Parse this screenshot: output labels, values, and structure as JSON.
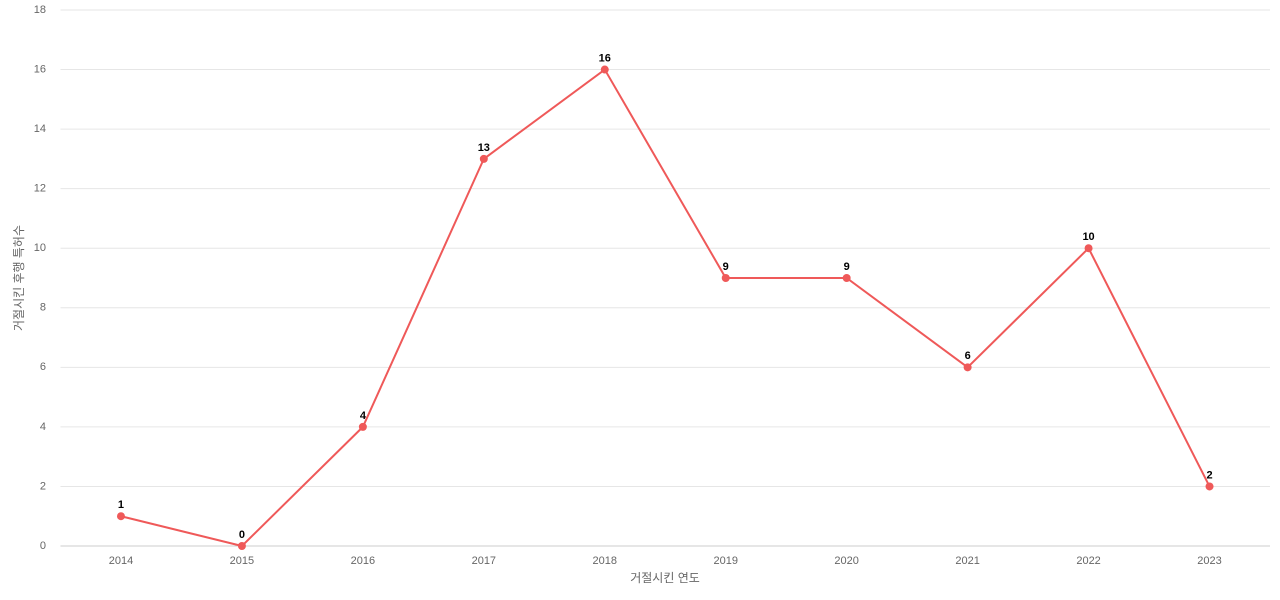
{
  "chart_data": {
    "type": "line",
    "x_label": "거절시킨 연도",
    "y_label": "거절시킨 후행 특허수",
    "categories": [
      "2014",
      "2015",
      "2016",
      "2017",
      "2018",
      "2019",
      "2020",
      "2021",
      "2022",
      "2023"
    ],
    "series": [
      {
        "color": "#ef5959",
        "values": [
          1,
          0,
          4,
          13,
          16,
          9,
          9,
          6,
          10,
          2
        ]
      }
    ],
    "ylim": [
      0,
      18
    ],
    "yticks": [
      0,
      2,
      4,
      6,
      8,
      10,
      12,
      14,
      16,
      18
    ],
    "grid": true
  }
}
